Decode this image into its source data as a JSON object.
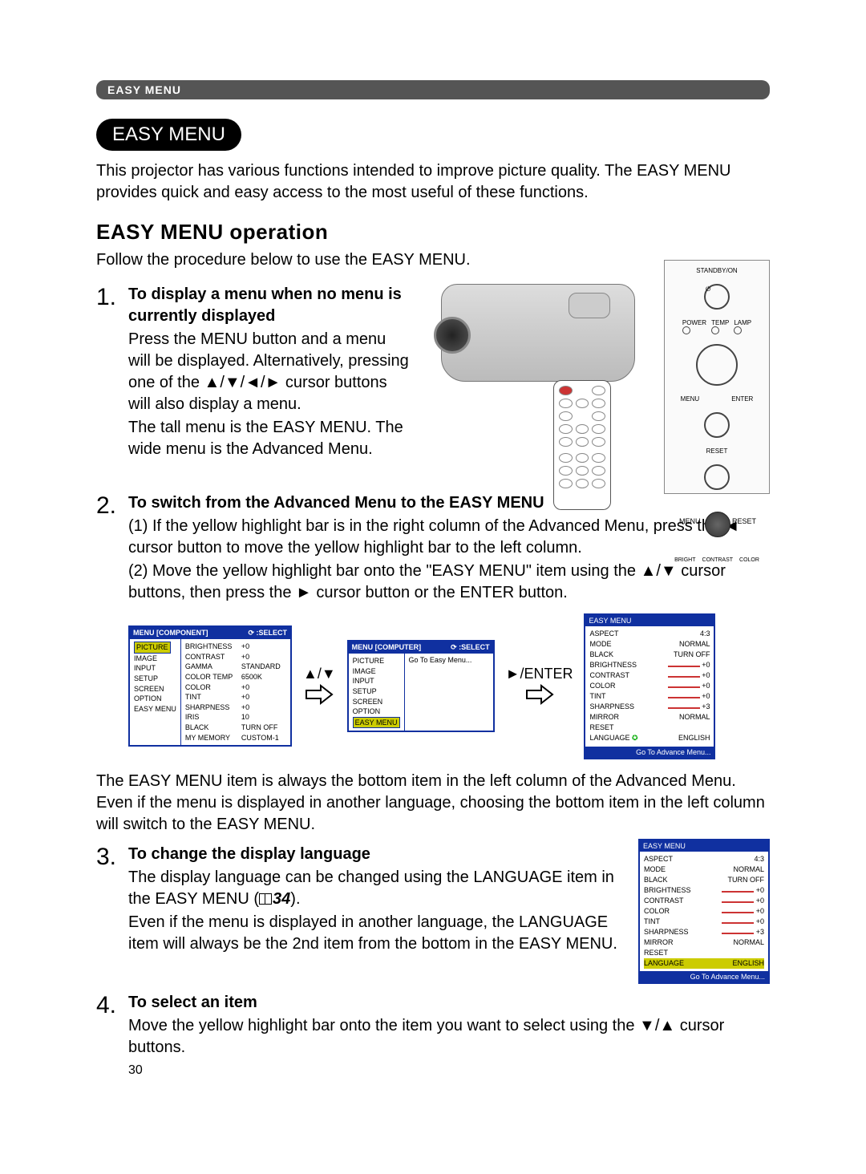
{
  "header": {
    "label": "EASY MENU"
  },
  "title_pill": "EASY MENU",
  "intro": "This projector has various functions intended to improve picture quality. The EASY MENU provides quick and easy access to the most useful of these functions.",
  "section_heading": "EASY MENU operation",
  "follow": "Follow the procedure below to use the EASY MENU.",
  "step1": {
    "num": "1.",
    "title": "To display a menu when no menu is currently displayed",
    "p1": "Press the MENU button and a menu will be displayed. Alternatively, pressing one of the ▲/▼/◄/► cursor buttons will also display a menu.",
    "p2": "The tall menu is the EASY MENU. The wide menu is the Advanced Menu."
  },
  "panel_labels": {
    "standby": "STANDBY/ON",
    "power": "POWER",
    "temp": "TEMP",
    "lamp": "LAMP",
    "menu": "MENU",
    "enter": "ENTER",
    "reset": "RESET",
    "bright": "BRIGHT",
    "contrast": "CONTRAST",
    "color": "COLOR"
  },
  "step2": {
    "num": "2.",
    "title": "To switch from the Advanced Menu to the EASY MENU",
    "l1": "(1) If the yellow highlight bar is in the right column of the Advanced Menu, press the ◄ cursor button to move the yellow highlight bar to the left column.",
    "l2": "(2) Move the yellow highlight bar onto the \"EASY MENU\" item using the ▲/▼ cursor buttons, then press the ► cursor button or the ENTER button."
  },
  "screenA": {
    "hdrL": "MENU [COMPONENT]",
    "hdrR": "  :SELECT",
    "left": [
      "PICTURE",
      "IMAGE",
      "INPUT",
      "SETUP",
      "SCREEN",
      "OPTION",
      "EASY MENU"
    ],
    "rightK": [
      "BRIGHTNESS",
      "CONTRAST",
      "GAMMA",
      "COLOR TEMP",
      "COLOR",
      "TINT",
      "SHARPNESS",
      "IRIS",
      "BLACK",
      "MY MEMORY"
    ],
    "rightV": [
      "+0",
      "+0",
      "STANDARD",
      "6500K",
      "+0",
      "+0",
      "+0",
      "10",
      "TURN OFF",
      "CUSTOM-1"
    ]
  },
  "mid_arrows": "▲/▼",
  "screenB": {
    "hdrL": "MENU [COMPUTER]",
    "hdrR": "  :SELECT",
    "left": [
      "PICTURE",
      "IMAGE",
      "INPUT",
      "SETUP",
      "SCREEN",
      "OPTION",
      "EASY MENU"
    ],
    "right": "Go To Easy Menu..."
  },
  "enter_label": "►/ENTER",
  "easy": {
    "hdr": "EASY MENU",
    "rows": [
      [
        "ASPECT",
        "4:3"
      ],
      [
        "MODE",
        "NORMAL"
      ],
      [
        "BLACK",
        "TURN OFF"
      ],
      [
        "BRIGHTNESS",
        "+0"
      ],
      [
        "CONTRAST",
        "+0"
      ],
      [
        "COLOR",
        "+0"
      ],
      [
        "TINT",
        "+0"
      ],
      [
        "SHARPNESS",
        "+3"
      ],
      [
        "MIRROR",
        "NORMAL"
      ],
      [
        "RESET",
        ""
      ],
      [
        "LANGUAGE",
        "ENGLISH"
      ]
    ],
    "foot": "Go To Advance Menu..."
  },
  "para_after": "The EASY MENU item is always the bottom item in the left column of the Advanced Menu. Even if the menu is displayed in another language, choosing the bottom item in the left column will switch to the EASY MENU.",
  "step3": {
    "num": "3.",
    "title": "To change the display language",
    "p1a": "The display language can be changed using the LANGUAGE item in the EASY MENU (",
    "p1ref": "34",
    "p1b": ").",
    "p2": "Even if the menu is displayed in another language, the LANGUAGE item will always be the 2nd item from the bottom in the EASY MENU."
  },
  "step4": {
    "num": "4.",
    "title": "To select an item",
    "p": "Move the yellow highlight bar onto the item you want to select using the ▼/▲ cursor buttons."
  },
  "pagenum": "30"
}
